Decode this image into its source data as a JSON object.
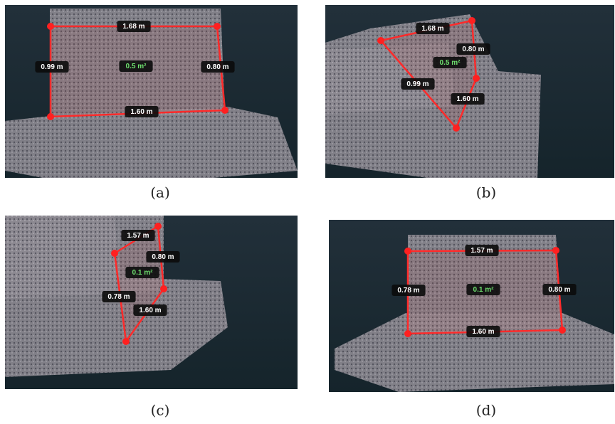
{
  "panels": [
    {
      "caption": "(a)",
      "labels": [
        "1.68 m",
        "0.99 m",
        "0.80 m",
        "1.60 m"
      ],
      "area": "0.5 m²"
    },
    {
      "caption": "(b)",
      "labels": [
        "1.68 m",
        "0.80 m",
        "0.99 m",
        "1.60 m"
      ],
      "area": "0.5 m²"
    },
    {
      "caption": "(c)",
      "labels": [
        "1.57 m",
        "0.80 m",
        "0.78 m",
        "1.60 m"
      ],
      "area": "0.1 m²"
    },
    {
      "caption": "(d)",
      "labels": [
        "1.57 m",
        "0.78 m",
        "0.80 m",
        "1.60 m"
      ],
      "area": "0.1 m²"
    }
  ]
}
